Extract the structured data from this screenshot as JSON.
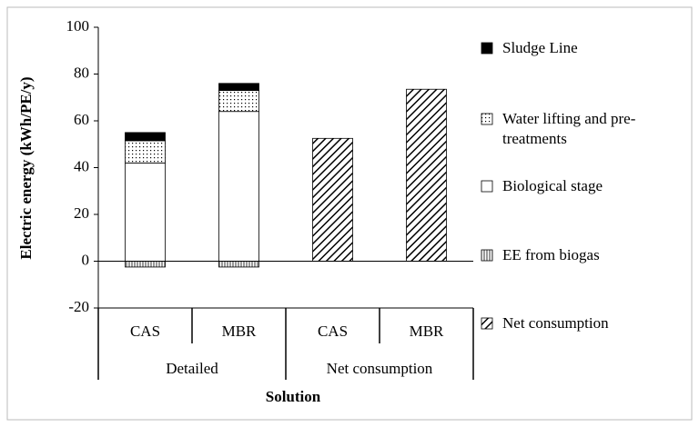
{
  "chart_data": {
    "type": "stacked-bar",
    "y_label": "Electric energy (kWh/PE/y)",
    "x_label": "Solution",
    "groups": [
      "Detailed",
      "Net consumption"
    ],
    "categories": [
      "CAS",
      "MBR",
      "CAS",
      "MBR"
    ],
    "series": [
      {
        "name": "Sludge Line",
        "color": "#000000",
        "pattern": "solid",
        "values": [
          3.5,
          3,
          null,
          null
        ]
      },
      {
        "name": "Water lifting and pre-treatments",
        "color": "#000000",
        "pattern": "dots",
        "values": [
          9.5,
          9,
          null,
          null
        ]
      },
      {
        "name": "Biological stage",
        "color": "#000000",
        "pattern": "empty",
        "values": [
          42,
          64,
          null,
          null
        ]
      },
      {
        "name": "EE from biogas",
        "color": "#000000",
        "pattern": "vertical",
        "values": [
          -2.5,
          -2.5,
          null,
          null
        ]
      },
      {
        "name": "Net consumption",
        "color": "#000000",
        "pattern": "diagonal",
        "values": [
          null,
          null,
          52.5,
          73.5
        ]
      }
    ],
    "ylim": [
      -20,
      100
    ],
    "yticks": [
      -20,
      0,
      20,
      40,
      60,
      80,
      100
    ],
    "legend": "right"
  }
}
